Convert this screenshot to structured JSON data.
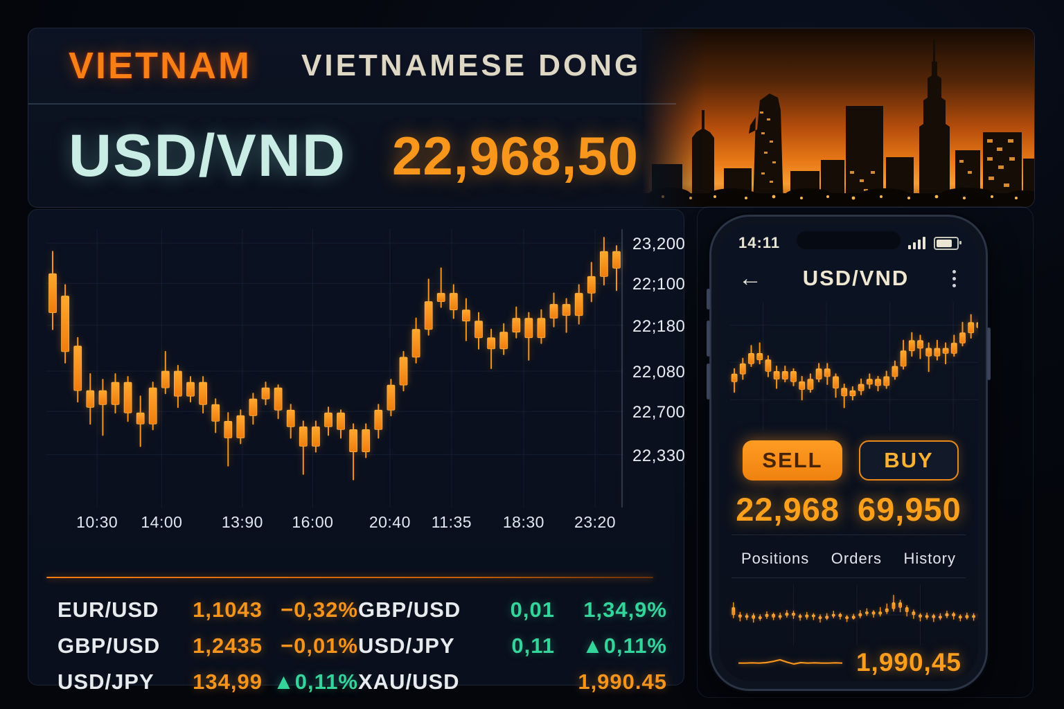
{
  "colors": {
    "accent_orange": "#f7941c",
    "teal_pair": "#c9ece5",
    "green": "#35d49b",
    "cream": "#ddd7c4",
    "bg_panel": "#0a1120"
  },
  "header": {
    "country": "VIETNAM",
    "currency_name": "VIETNAMESE DONG",
    "pair": "USD/VND",
    "price": "22,968,50"
  },
  "chart_data": [
    {
      "id": "main",
      "type": "candlestick",
      "title": "USD/VND intraday",
      "scale": "normalized 0-100 (no true axis values; y tick labels as printed)",
      "y_tick_labels": [
        "23,200",
        "22;100",
        "22;180",
        "22,080",
        "22,700",
        "22,330"
      ],
      "y_tick_positions": [
        0.05,
        0.195,
        0.345,
        0.51,
        0.655,
        0.81
      ],
      "x_tick_labels": [
        "10:30",
        "14:00",
        "13:90",
        "16:00",
        "20:40",
        "11:35",
        "18:30",
        "23:20"
      ],
      "x_tick_positions": [
        0.088,
        0.2,
        0.34,
        0.462,
        0.596,
        0.703,
        0.828,
        0.952
      ],
      "grid": true,
      "axis_right": true,
      "body_w": 11,
      "candles": [
        [
          84,
          70,
          92,
          64
        ],
        [
          76,
          56,
          80,
          52
        ],
        [
          58,
          42,
          61,
          38
        ],
        [
          42,
          36,
          48,
          30
        ],
        [
          42,
          37,
          46,
          26
        ],
        [
          37,
          45,
          48,
          34
        ],
        [
          45,
          34,
          47,
          31
        ],
        [
          34,
          30,
          40,
          22
        ],
        [
          30,
          43,
          45,
          28
        ],
        [
          43,
          49,
          56,
          41
        ],
        [
          49,
          40,
          51,
          36
        ],
        [
          40,
          45,
          47,
          38
        ],
        [
          45,
          37,
          47,
          34
        ],
        [
          37,
          31,
          39,
          27
        ],
        [
          31,
          25,
          34,
          15
        ],
        [
          25,
          33,
          35,
          23
        ],
        [
          33,
          39,
          41,
          30
        ],
        [
          39,
          43,
          45,
          37
        ],
        [
          43,
          35,
          44,
          32
        ],
        [
          35,
          29,
          37,
          25
        ],
        [
          29,
          22,
          31,
          12
        ],
        [
          22,
          29,
          31,
          20
        ],
        [
          29,
          34,
          36,
          26
        ],
        [
          34,
          28,
          35,
          25
        ],
        [
          28,
          20,
          30,
          10
        ],
        [
          20,
          28,
          30,
          18
        ],
        [
          28,
          35,
          37,
          25
        ],
        [
          35,
          44,
          46,
          33
        ],
        [
          44,
          54,
          56,
          42
        ],
        [
          54,
          64,
          68,
          52
        ],
        [
          64,
          74,
          82,
          62
        ],
        [
          74,
          77,
          86,
          72
        ],
        [
          77,
          71,
          80,
          68
        ],
        [
          71,
          67,
          75,
          60
        ],
        [
          67,
          61,
          70,
          57
        ],
        [
          61,
          57,
          64,
          50
        ],
        [
          57,
          63,
          66,
          55
        ],
        [
          63,
          68,
          72,
          61
        ],
        [
          68,
          61,
          70,
          53
        ],
        [
          61,
          68,
          71,
          59
        ],
        [
          68,
          73,
          77,
          65
        ],
        [
          73,
          69,
          75,
          63
        ],
        [
          69,
          77,
          80,
          66
        ],
        [
          77,
          83,
          88,
          74
        ],
        [
          83,
          92,
          97,
          80
        ],
        [
          92,
          86,
          94,
          78
        ]
      ]
    },
    {
      "id": "phone_mini",
      "type": "candlestick",
      "title": "USD/VND phone chart",
      "scale": "normalized 0-100",
      "grid": true,
      "body_w": 8,
      "y_grid": [
        0.18,
        0.47,
        0.76
      ],
      "x_grid": [
        0.13,
        0.38,
        0.63,
        0.88
      ],
      "candles": [
        [
          38,
          44,
          48,
          30
        ],
        [
          44,
          52,
          56,
          40
        ],
        [
          52,
          60,
          66,
          50
        ],
        [
          60,
          55,
          68,
          52
        ],
        [
          55,
          46,
          58,
          42
        ],
        [
          46,
          40,
          50,
          33
        ],
        [
          40,
          46,
          50,
          38
        ],
        [
          46,
          38,
          48,
          35
        ],
        [
          38,
          32,
          42,
          24
        ],
        [
          32,
          40,
          44,
          30
        ],
        [
          40,
          48,
          52,
          38
        ],
        [
          48,
          42,
          52,
          36
        ],
        [
          42,
          33,
          44,
          26
        ],
        [
          33,
          27,
          36,
          18
        ],
        [
          27,
          31,
          34,
          24
        ],
        [
          31,
          36,
          40,
          28
        ],
        [
          36,
          40,
          44,
          33
        ],
        [
          40,
          35,
          42,
          31
        ],
        [
          35,
          42,
          46,
          33
        ],
        [
          42,
          50,
          54,
          40
        ],
        [
          50,
          62,
          70,
          48
        ],
        [
          62,
          70,
          76,
          58
        ],
        [
          70,
          64,
          74,
          56
        ],
        [
          64,
          58,
          68,
          46
        ],
        [
          58,
          64,
          70,
          55
        ],
        [
          64,
          60,
          68,
          52
        ],
        [
          60,
          68,
          74,
          58
        ],
        [
          68,
          76,
          84,
          66
        ],
        [
          76,
          84,
          90,
          72
        ],
        [
          84,
          80,
          88,
          74
        ]
      ]
    },
    {
      "id": "phone_strip",
      "type": "candlestick",
      "title": "phone secondary strip chart",
      "scale": "normalized 0-100",
      "grid": true,
      "body_w": 4,
      "y_grid": [
        0.5
      ],
      "x_grid": [
        0.25,
        0.5,
        0.75
      ],
      "candles": [
        [
          62,
          50,
          70,
          45
        ],
        [
          50,
          46,
          54,
          40
        ],
        [
          46,
          49,
          52,
          42
        ],
        [
          49,
          44,
          52,
          38
        ],
        [
          44,
          47,
          50,
          41
        ],
        [
          47,
          51,
          55,
          44
        ],
        [
          51,
          46,
          53,
          42
        ],
        [
          46,
          49,
          53,
          43
        ],
        [
          49,
          53,
          57,
          46
        ],
        [
          53,
          49,
          56,
          44
        ],
        [
          49,
          46,
          51,
          41
        ],
        [
          46,
          50,
          54,
          43
        ],
        [
          50,
          47,
          52,
          42
        ],
        [
          47,
          44,
          50,
          38
        ],
        [
          44,
          48,
          52,
          42
        ],
        [
          48,
          51,
          56,
          45
        ],
        [
          51,
          47,
          53,
          43
        ],
        [
          47,
          44,
          49,
          39
        ],
        [
          44,
          48,
          51,
          43
        ],
        [
          48,
          52,
          57,
          45
        ],
        [
          52,
          55,
          60,
          49
        ],
        [
          55,
          51,
          57,
          46
        ],
        [
          51,
          55,
          62,
          48
        ],
        [
          55,
          60,
          68,
          52
        ],
        [
          60,
          70,
          82,
          56
        ],
        [
          70,
          62,
          74,
          55
        ],
        [
          62,
          55,
          65,
          48
        ],
        [
          55,
          50,
          58,
          44
        ],
        [
          50,
          46,
          52,
          40
        ],
        [
          46,
          49,
          53,
          43
        ],
        [
          49,
          45,
          51,
          39
        ],
        [
          45,
          48,
          52,
          42
        ],
        [
          48,
          52,
          56,
          45
        ],
        [
          52,
          48,
          54,
          43
        ],
        [
          48,
          45,
          50,
          40
        ],
        [
          45,
          49,
          53,
          43
        ],
        [
          49,
          46,
          52,
          41
        ],
        [
          46,
          50,
          54,
          44
        ]
      ]
    },
    {
      "id": "phone_sparkline",
      "type": "line",
      "title": "gold sparkline",
      "scale": "normalized 0-100",
      "points": [
        48,
        48,
        49,
        48,
        50,
        55,
        62,
        52,
        44,
        50,
        48,
        49,
        48,
        48,
        49,
        48
      ]
    }
  ],
  "ticker": {
    "rows": [
      {
        "cells": [
          {
            "text": "EUR/USD",
            "color": "white",
            "align": "left"
          },
          {
            "text": "1,1043",
            "color": "orange",
            "align": "right"
          },
          {
            "text": "−0,32%",
            "color": "orange",
            "align": "right"
          },
          {
            "text": "GBP/USD",
            "color": "white",
            "align": "left"
          },
          {
            "text": "0,01",
            "color": "green",
            "align": "right"
          },
          {
            "text": "1,34,9%",
            "color": "green",
            "align": "right"
          }
        ]
      },
      {
        "cells": [
          {
            "text": "GBP/USD",
            "color": "white",
            "align": "left"
          },
          {
            "text": "1,2435",
            "color": "orange",
            "align": "right"
          },
          {
            "text": "−0,01%",
            "color": "orange",
            "align": "right"
          },
          {
            "text": "USD/JPY",
            "color": "white",
            "align": "left"
          },
          {
            "text": "0,11",
            "color": "green",
            "align": "right"
          },
          {
            "text": "▲0,11%",
            "color": "green",
            "align": "right"
          }
        ]
      },
      {
        "cells": [
          {
            "text": "USD/JPY",
            "color": "white",
            "align": "left"
          },
          {
            "text": "134,99",
            "color": "orange",
            "align": "right"
          },
          {
            "text": "▲0,11%",
            "color": "green",
            "align": "right"
          },
          {
            "text": "XAU/USD",
            "color": "white",
            "align": "left"
          },
          {
            "text": "",
            "color": "white",
            "align": "right"
          },
          {
            "text": "1,990.45",
            "color": "orange",
            "align": "right"
          }
        ]
      }
    ]
  },
  "phone": {
    "status_time": "14:11",
    "back_icon": "←",
    "title": "USD/VND",
    "sell_label": "SELL",
    "buy_label": "BUY",
    "sell_price": "22,968",
    "buy_price": "69,950",
    "tabs": [
      "Positions",
      "Orders",
      "History"
    ],
    "bottom_price": "1,990,45"
  }
}
